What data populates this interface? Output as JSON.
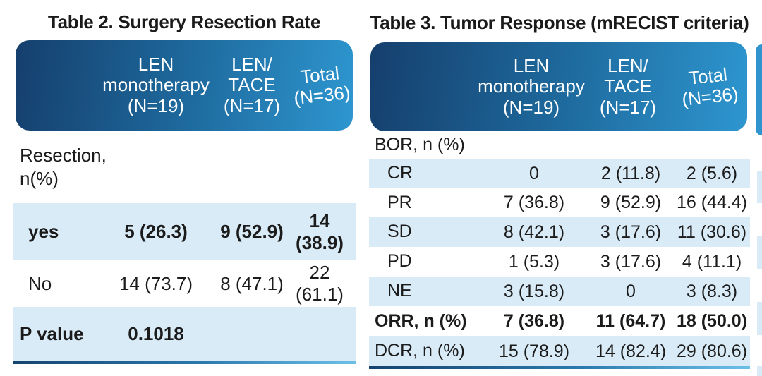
{
  "colors": {
    "header_gradient_start": "#153f6d",
    "header_gradient_mid": "#1e6a9e",
    "header_gradient_end": "#2e96cf",
    "row_highlight_blue": "#d9ebf7",
    "bottom_rule_gradient_start": "#16436f",
    "bottom_rule_gradient_end": "#6cc0e8",
    "header_text": "#ffffff",
    "body_text": "#1b1b1b"
  },
  "table2": {
    "title": "Table 2. Surgery Resection Rate",
    "header": {
      "len_monotherapy": "LEN\nmonotherapy\n(N=19)",
      "len_tace": "LEN/\nTACE\n(N=17)",
      "total": "Total\n(N=36)"
    },
    "rows": {
      "resection_label": "Resection,\nn(%)",
      "yes": {
        "label": "yes",
        "len": "5 (26.3)",
        "lentace": "9 (52.9)",
        "total": "14 (38.9)"
      },
      "no": {
        "label": "No",
        "len": "14 (73.7)",
        "lentace": "8 (47.1)",
        "total": "22 (61.1)"
      },
      "pvalue": {
        "label": "P value",
        "value": "0.1018"
      }
    }
  },
  "table3": {
    "title": "Table 3. Tumor Response (mRECIST criteria)",
    "header": {
      "len_monotherapy": "LEN\nmonotherapy\n(N=19)",
      "len_tace": "LEN/\nTACE\n(N=17)",
      "total": "Total\n(N=36)"
    },
    "rows": {
      "bor_label": "BOR, n (%)",
      "cr": {
        "label": "CR",
        "len": "0",
        "lentace": "2 (11.8)",
        "total": "2 (5.6)"
      },
      "pr": {
        "label": "PR",
        "len": "7 (36.8)",
        "lentace": "9 (52.9)",
        "total": "16 (44.4)"
      },
      "sd": {
        "label": "SD",
        "len": "8 (42.1)",
        "lentace": "3 (17.6)",
        "total": "11 (30.6)"
      },
      "pd": {
        "label": "PD",
        "len": "1 (5.3)",
        "lentace": "3 (17.6)",
        "total": "4 (11.1)"
      },
      "ne": {
        "label": "NE",
        "len": "3 (15.8)",
        "lentace": "0",
        "total": "3 (8.3)"
      },
      "orr": {
        "label": "ORR, n (%)",
        "len": "7 (36.8)",
        "lentace": "11 (64.7)",
        "total": "18 (50.0)"
      },
      "dcr": {
        "label": "DCR, n (%)",
        "len": "15 (78.9)",
        "lentace": "14 (82.4)",
        "total": "29 (80.6)"
      }
    }
  }
}
